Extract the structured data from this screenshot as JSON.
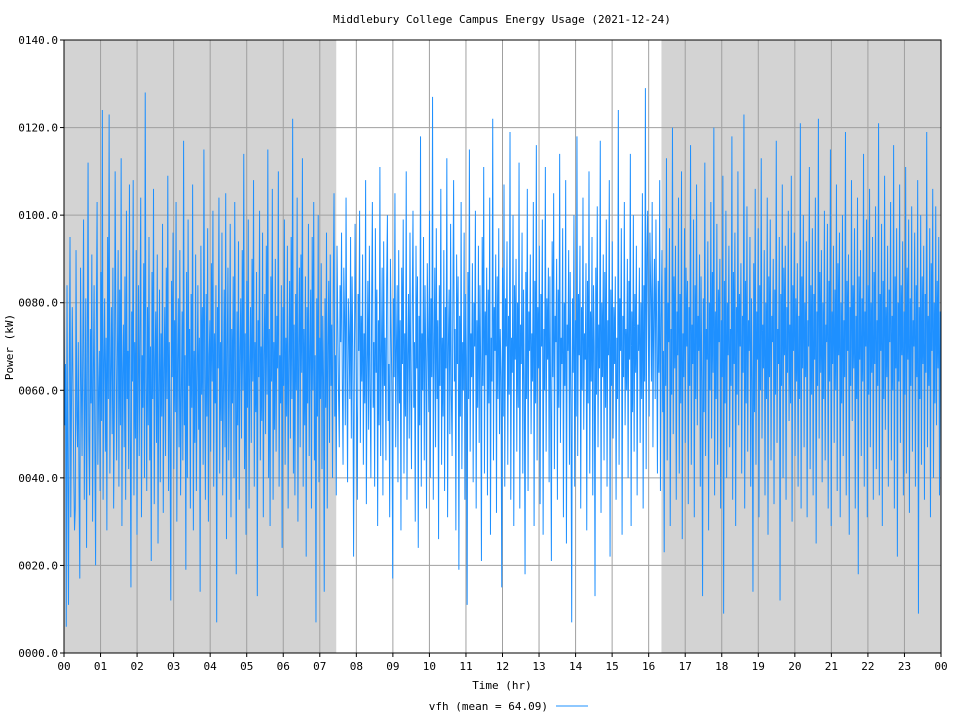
{
  "chart_data": {
    "type": "line",
    "title": "Middlebury College Campus Energy Usage (2021-12-24)",
    "xlabel": "Time (hr)",
    "ylabel": "Power (kW)",
    "xlim": [
      0,
      24
    ],
    "ylim": [
      0,
      140
    ],
    "x_ticks": [
      "00",
      "01",
      "02",
      "03",
      "04",
      "05",
      "06",
      "07",
      "08",
      "09",
      "10",
      "11",
      "12",
      "13",
      "14",
      "15",
      "16",
      "17",
      "18",
      "19",
      "20",
      "21",
      "22",
      "23",
      "00"
    ],
    "y_ticks": [
      "0000.0",
      "0020.0",
      "0040.0",
      "0060.0",
      "0080.0",
      "0100.0",
      "0120.0",
      "0140.0"
    ],
    "grid": true,
    "shaded_x_ranges": [
      [
        0,
        7.45
      ],
      [
        16.35,
        24
      ]
    ],
    "shade_color": "#d3d3d3",
    "legend_placement": "bottom-center",
    "series": [
      {
        "name": "vfh (mean = 64.09)",
        "color": "#1e90ff",
        "mean": 64.09,
        "sample_interval_hr": 0.0167,
        "values": [
          78,
          52,
          66,
          6,
          84,
          42,
          11,
          65,
          95,
          31,
          58,
          79,
          60,
          41,
          28,
          33,
          92,
          54,
          47,
          71,
          38,
          17,
          88,
          63,
          45,
          70,
          99,
          35,
          58,
          81,
          24,
          67,
          112,
          49,
          36,
          74,
          57,
          91,
          30,
          62,
          84,
          48,
          20,
          76,
          103,
          43,
          59,
          69,
          37,
          87,
          53,
          124,
          35,
          66,
          81,
          46,
          72,
          28,
          95,
          58,
          123,
          41,
          63,
          79,
          50,
          88,
          33,
          56,
          110,
          71,
          44,
          67,
          92,
          38,
          83,
          52,
          113,
          29,
          64,
          75,
          47,
          86,
          35,
          101,
          58,
          69,
          42,
          107,
          53,
          15,
          78,
          62,
          108,
          36,
          71,
          49,
          92,
          27,
          60,
          84,
          45,
          74,
          104,
          31,
          68,
          56,
          89,
          40,
          128,
          63,
          37,
          79,
          52,
          95,
          44,
          70,
          21,
          87,
          58,
          106,
          34,
          66,
          78,
          48,
          91,
          25,
          61,
          83,
          39,
          73,
          54,
          98,
          32,
          65,
          79,
          45,
          88,
          58,
          109,
          37,
          71,
          50,
          12,
          85,
          63,
          96,
          42,
          76,
          55,
          103,
          30,
          67,
          81,
          47,
          92,
          36,
          58,
          78,
          44,
          117,
          52,
          68,
          19,
          87,
          40,
          99,
          61,
          74,
          33,
          82,
          56,
          107,
          28,
          69,
          48,
          91,
          37,
          63,
          84,
          51,
          72,
          14,
          93,
          59,
          79,
          43,
          115,
          66,
          35,
          82,
          54,
          97,
          30,
          68,
          76,
          46,
          89,
          62,
          101,
          38,
          73,
          57,
          84,
          7,
          79,
          65,
          104,
          41,
          71,
          53,
          96,
          36,
          59,
          83,
          47,
          105,
          26,
          70,
          88,
          44,
          62,
          98,
          31,
          74,
          57,
          86,
          40,
          103,
          64,
          18,
          78,
          52,
          94,
          35,
          69,
          81,
          49,
          92,
          60,
          114,
          42,
          73,
          27,
          85,
          56,
          99,
          33,
          66,
          79,
          48,
          90,
          62,
          108,
          38,
          71,
          55,
          87,
          13,
          76,
          63,
          101,
          44,
          70,
          53,
          96,
          31,
          68,
          82,
          50,
          93,
          59,
          115,
          40,
          74,
          29,
          86,
          62,
          106,
          35,
          71,
          51,
          90,
          46,
          77,
          65,
          110,
          38,
          68,
          57,
          84,
          24,
          79,
          61,
          99,
          43,
          72,
          54,
          93,
          33,
          67,
          85,
          49,
          95,
          58,
          122,
          41,
          75,
          36,
          82,
          60,
          104,
          30,
          70,
          88,
          47,
          91,
          64,
          113,
          38,
          74,
          52,
          86,
          22,
          79,
          57,
          98,
          45,
          69,
          83,
          33,
          95,
          60,
          103,
          44,
          68,
          7,
          81,
          54,
          100,
          39,
          72,
          58,
          89,
          42,
          77,
          63,
          14,
          81,
          56,
          96,
          33,
          70,
          85,
          48,
          91,
          61,
          75,
          40,
          82,
          105,
          54,
          68,
          36,
          93,
          76,
          59,
          47,
          84,
          71,
          96,
          62,
          43,
          88,
          77,
          52,
          104,
          67,
          39,
          81,
          73,
          58,
          95,
          49,
          86,
          70,
          22,
          63,
          98,
          74,
          55,
          35,
          82,
          69,
          101,
          48,
          77,
          62,
          91,
          43,
          73,
          57,
          108,
          34,
          65,
          85,
          51,
          93,
          60,
          40,
          80,
          103,
          56,
          71,
          38,
          97,
          64,
          83,
          29,
          76,
          52,
          111,
          45,
          68,
          88,
          36,
          94,
          61,
          72,
          44,
          85,
          100,
          53,
          66,
          31,
          90,
          74,
          58,
          17,
          81,
          63,
          105,
          47,
          70,
          84,
          39,
          92,
          57,
          76,
          28,
          88,
          66,
          99,
          41,
          73,
          54,
          110,
          35,
          68,
          82,
          49,
          96,
          61,
          42,
          79,
          101,
          56,
          71,
          30,
          93,
          65,
          86,
          24,
          77,
          52,
          118,
          38,
          73,
          60,
          95,
          44,
          84,
          67,
          33,
          89,
          72,
          55,
          101,
          40,
          81,
          63,
          127,
          35,
          69,
          88,
          47,
          97,
          58,
          76,
          26,
          84,
          61,
          106,
          43,
          72,
          54,
          92,
          37,
          79,
          65,
          113,
          31,
          70,
          83,
          50,
          98,
          59,
          45,
          80,
          108,
          62,
          74,
          28,
          91,
          66,
          86,
          19,
          77,
          54,
          103,
          42,
          71,
          60,
          96,
          35,
          82,
          67,
          11,
          87,
          58,
          115,
          46,
          73,
          63,
          89,
          39,
          80,
          70,
          101,
          33,
          76,
          56,
          93,
          48,
          84,
          65,
          21,
          95,
          61,
          111,
          41,
          78,
          68,
          88,
          36,
          83,
          57,
          104,
          27,
          72,
          62,
          122,
          44,
          79,
          69,
          91,
          32,
          86,
          58,
          97,
          50,
          74,
          63,
          15,
          88,
          54,
          107,
          38,
          81,
          70,
          94,
          43,
          77,
          59,
          119,
          35,
          72,
          64,
          100,
          29,
          84,
          67,
          90,
          46,
          80,
          56,
          112,
          33,
          75,
          66,
          96,
          41,
          83,
          61,
          18,
          87,
          58,
          106,
          37,
          78,
          69,
          91,
          50,
          73,
          62,
          103,
          29,
          85,
          57,
          116,
          44,
          79,
          65,
          93,
          34,
          82,
          70,
          99,
          27,
          74,
          60,
          111,
          46,
          81,
          67,
          88,
          39,
          86,
          58,
          21,
          94,
          63,
          105,
          42,
          77,
          71,
          90,
          35,
          83,
          56,
          114,
          48,
          72,
          66,
          97,
          31,
          80,
          61,
          108,
          25,
          75,
          69,
          92,
          43,
          87,
          58,
          7,
          81,
          64,
          100,
          38,
          76,
          54,
          118,
          45,
          82,
          68,
          93,
          33,
          79,
          60,
          104,
          51,
          73,
          67,
          89,
          28,
          85,
          57,
          110,
          41,
          78,
          62,
          95,
          36,
          84,
          70,
          13,
          88,
          59,
          102,
          47,
          75,
          65,
          117,
          32,
          80,
          63,
          91,
          44,
          87,
          56,
          99,
          38,
          76,
          68,
          108,
          22,
          83,
          61,
          94,
          49,
          79,
          66,
          86,
          35,
          72,
          58,
          124,
          43,
          81,
          69,
          97,
          27,
          77,
          63,
          103,
          52,
          74,
          60,
          90,
          40,
          85,
          67,
          114,
          29,
          78,
          55,
          100,
          46,
          82,
          64,
          93,
          36,
          75,
          69,
          88,
          48,
          80,
          58,
          105,
          33,
          84,
          62,
          129,
          42,
          91,
          101,
          70,
          54,
          96,
          83,
          62,
          103,
          47,
          78,
          90,
          58,
          99,
          72,
          41,
          85,
          64,
          108,
          37,
          76,
          92,
          55,
          69,
          23,
          88,
          61,
          113,
          44,
          80,
          71,
          97,
          29,
          74,
          59,
          120,
          50,
          86,
          65,
          93,
          35,
          78,
          68,
          104,
          41,
          82,
          57,
          110,
          26,
          73,
          63,
          97,
          48,
          88,
          70,
          85,
          34,
          79,
          61,
          116,
          43,
          75,
          66,
          99,
          31,
          84,
          58,
          107,
          52,
          77,
          69,
          91,
          38,
          86,
          62,
          13,
          81,
          55,
          112,
          45,
          74,
          67,
          94,
          28,
          80,
          60,
          103,
          49,
          87,
          64,
          120,
          36,
          78,
          58,
          98,
          43,
          83,
          71,
          90,
          33,
          76,
          63,
          109,
          9,
          85,
          57,
          101,
          40,
          80,
          68,
          93,
          47,
          74,
          61,
          118,
          35,
          87,
          66,
          96,
          29,
          79,
          59,
          110,
          52,
          82,
          70,
          89,
          41,
          77,
          64,
          123,
          33,
          85,
          57,
          102,
          46,
          76,
          69,
          95,
          38,
          81,
          62,
          14,
          89,
          55,
          106,
          43,
          78,
          67,
          97,
          31,
          84,
          60,
          113,
          49,
          75,
          65,
          92,
          36,
          80,
          58,
          104,
          27,
          86,
          63,
          99,
          44,
          77,
          71,
          90,
          34,
          83,
          59,
          117,
          48,
          74,
          66,
          95,
          12,
          82,
          61,
          107,
          40,
          88,
          68,
          93,
          35,
          79,
          64,
          101,
          53,
          75,
          57,
          109,
          30,
          84,
          69,
          96,
          45,
          81,
          62,
          89,
          38,
          77,
          58,
          121,
          33,
          86,
          65,
          100,
          47,
          80,
          63,
          94,
          31,
          76,
          70,
          111,
          42,
          84,
          59,
          97,
          36,
          82,
          67,
          104,
          25,
          78,
          61,
          122,
          49,
          87,
          64,
          92,
          39,
          80,
          58,
          101,
          44,
          75,
          71,
          98,
          33,
          85,
          62,
          115,
          29,
          78,
          66,
          93,
          48,
          83,
          60,
          107,
          37,
          89,
          68,
          96,
          31,
          80,
          57,
          100,
          45,
          76,
          63,
          119,
          36,
          85,
          69,
          91,
          27,
          79,
          61,
          108,
          53,
          84,
          65,
          97,
          33,
          77,
          58,
          104,
          18,
          86,
          67,
          92,
          45,
          81,
          62,
          114,
          38,
          78,
          70,
          99,
          31,
          84,
          59,
          106,
          47,
          80,
          64,
          95,
          35,
          87,
          66,
          102,
          42,
          76,
          61,
          121,
          36,
          82,
          69,
          98,
          29,
          85,
          58,
          109,
          51,
          79,
          63,
          93,
          38,
          83,
          71,
          103,
          44,
          77,
          60,
          116,
          33,
          86,
          65,
          97,
          22,
          80,
          62,
          107,
          48,
          84,
          68,
          94,
          36,
          78,
          59,
          111,
          41,
          88,
          67,
          99,
          32,
          81,
          61,
          102,
          46,
          76,
          70,
          96,
          38,
          84,
          63,
          108,
          9,
          79,
          58,
          100,
          43,
          86,
          66,
          93,
          35,
          82,
          64,
          119,
          47,
          77,
          61,
          97,
          31,
          89,
          69,
          106,
          40,
          80,
          57,
          102,
          52,
          85,
          65,
          95,
          36,
          78,
          62
        ]
      }
    ]
  }
}
